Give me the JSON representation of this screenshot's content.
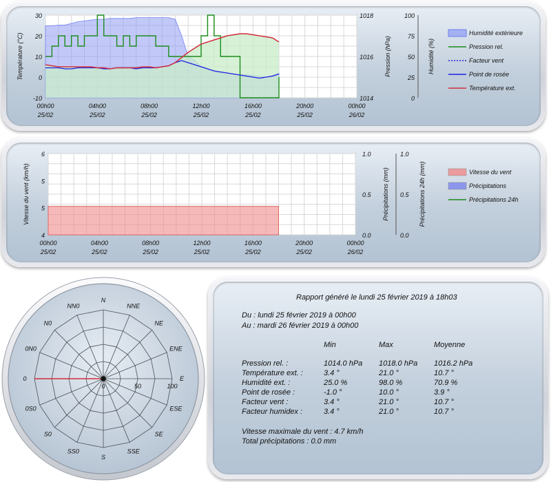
{
  "chart1": {
    "type": "line",
    "y1label": "Température (°C)",
    "y2label": "Pression (hPa)",
    "y3label": "Humidité (%)",
    "y1ticks": [
      "30",
      "20",
      "10",
      "0",
      "-10"
    ],
    "y2ticks": [
      "1018",
      "1016",
      "1014"
    ],
    "y3ticks": [
      "100",
      "75",
      "50",
      "25",
      "0"
    ],
    "xticks": [
      [
        "00h00",
        "25/02"
      ],
      [
        "04h00",
        "25/02"
      ],
      [
        "08h00",
        "25/02"
      ],
      [
        "12h00",
        "25/02"
      ],
      [
        "16h00",
        "25/02"
      ],
      [
        "20h00",
        "25/02"
      ],
      [
        "00h00",
        "26/02"
      ]
    ],
    "legend": [
      "Humidité extérieure",
      "Pression rel.",
      "Facteur vent",
      "Point de rosée",
      "Température ext."
    ],
    "colors": {
      "humidity": "#8f9cf4",
      "pressure": "#1a8a1a",
      "wind_factor": "#2222cc",
      "dew": "#1e1ee6",
      "temp": "#d22c3c"
    }
  },
  "chart2": {
    "type": "bar",
    "y1label": "Vitesse du vent (km/h)",
    "y2label": "Précipitations (mm)",
    "y3label": "Précipitations 24h (mm)",
    "y1ticks": [
      "6",
      "5",
      "5",
      "4"
    ],
    "y2ticks": [
      "1.0",
      "0.5",
      "0.0"
    ],
    "y3ticks": [
      "1.0",
      "0.5",
      "0.0"
    ],
    "xticks": [
      [
        "00h00",
        "25/02"
      ],
      [
        "04h00",
        "25/02"
      ],
      [
        "08h00",
        "25/02"
      ],
      [
        "12h00",
        "25/02"
      ],
      [
        "16h00",
        "25/02"
      ],
      [
        "20h00",
        "25/02"
      ],
      [
        "00h00",
        "26/02"
      ]
    ],
    "legend": [
      "Vitesse du vent",
      "Précipitations",
      "Précipitations 24h"
    ],
    "colors": {
      "wind": "#f08a8a",
      "rain": "#7a85ee",
      "rain24": "#1a8a1a"
    }
  },
  "chart_data": [
    {
      "type": "line",
      "xlabel": "",
      "x_hours": [
        0,
        0.5,
        1,
        1.5,
        2,
        2.5,
        3,
        3.5,
        4,
        4.5,
        5,
        5.5,
        6,
        6.5,
        7,
        7.5,
        8,
        8.5,
        9,
        9.5,
        10,
        10.5,
        11,
        11.5,
        12,
        12.5,
        13,
        13.5,
        14,
        14.5,
        15,
        15.5,
        16,
        16.5,
        17,
        17.5,
        18
      ],
      "series": [
        {
          "name": "Température ext.",
          "axis": "Température (°C)",
          "values": [
            6,
            5.5,
            5,
            5,
            5,
            5,
            5,
            5,
            4.5,
            4.5,
            4,
            4.5,
            4.5,
            4.5,
            4.5,
            5,
            5,
            4.5,
            5,
            5.5,
            7,
            9.5,
            12,
            14,
            16,
            17,
            18,
            19,
            20,
            20.5,
            21,
            21,
            20.5,
            20,
            19.5,
            19,
            17
          ]
        },
        {
          "name": "Point de rosée",
          "axis": "Température (°C)",
          "values": [
            4.5,
            4.5,
            4.5,
            4,
            4,
            4.5,
            4.5,
            4.5,
            4.5,
            4,
            4,
            4.5,
            4.5,
            4.5,
            4,
            4.5,
            4.5,
            4.5,
            5,
            5.5,
            7,
            8,
            7,
            6,
            5,
            4,
            3,
            2.5,
            2,
            1.5,
            1,
            0.5,
            0,
            -0.5,
            0,
            0.5,
            1.5
          ]
        },
        {
          "name": "Humidité extérieure",
          "axis": "Humidité (%)",
          "values": [
            87,
            87,
            88,
            88,
            90,
            92,
            93,
            94,
            95,
            95,
            96,
            96,
            96,
            96,
            97,
            97,
            97,
            97,
            97,
            97,
            95,
            75,
            50,
            45,
            38,
            35,
            32,
            30,
            30,
            29,
            28,
            28,
            27,
            26,
            25,
            27,
            30
          ]
        },
        {
          "name": "Pression rel.",
          "axis": "Pression (hPa)",
          "values": [
            1016,
            1016.5,
            1017,
            1016.5,
            1017,
            1016.5,
            1017,
            1017,
            1018,
            1017,
            1017,
            1016.5,
            1017,
            1016.5,
            1017,
            1017,
            1017,
            1016.5,
            1016.5,
            1016,
            1016,
            1016,
            1016,
            1016,
            1017,
            1018,
            1017,
            1016,
            1016,
            1016,
            1014,
            1014,
            1014,
            1014,
            1014,
            1014,
            1015
          ]
        }
      ]
    },
    {
      "type": "bar",
      "series": [
        {
          "name": "Vitesse du vent",
          "axis": "Vitesse du vent (km/h)",
          "x_hours": [
            0,
            18
          ],
          "values": [
            4.7,
            4.7
          ]
        },
        {
          "name": "Précipitations",
          "axis": "Précipitations (mm)",
          "values": [
            0
          ]
        },
        {
          "name": "Précipitations 24h",
          "axis": "Précipitations 24h (mm)",
          "values": [
            0
          ]
        }
      ]
    },
    {
      "type": "radar",
      "directions": [
        "N",
        "NNE",
        "NE",
        "ENE",
        "E",
        "ESE",
        "SE",
        "SSE",
        "S",
        "SS0",
        "S0",
        "0S0",
        "0",
        "0N0",
        "N0",
        "NN0"
      ],
      "ring_labels": [
        "0",
        "50",
        "100"
      ],
      "values": [
        0,
        0,
        0,
        0,
        0,
        0,
        0,
        0,
        0,
        0,
        0,
        0,
        100,
        0,
        0,
        0
      ]
    }
  ],
  "report": {
    "title": "Rapport généré le lundi 25 février 2019 à 18h03",
    "from": "Du : lundi 25 février 2019 à 00h00",
    "to": "Au : mardi 26 février 2019 à 00h00",
    "headers": [
      "Min",
      "Max",
      "Moyenne"
    ],
    "rows": [
      {
        "label": "Pression rel. :",
        "min": "1014.0 hPa",
        "max": "1018.0 hPa",
        "avg": "1016.2 hPa"
      },
      {
        "label": "Température ext. :",
        "min": "3.4 °",
        "max": "21.0 °",
        "avg": "10.7 °"
      },
      {
        "label": "Humidité ext. :",
        "min": "25.0 %",
        "max": "98.0 %",
        "avg": "70.9 %"
      },
      {
        "label": "Point de rosée :",
        "min": "-1.0 °",
        "max": "10.0 °",
        "avg": "3.9 °"
      },
      {
        "label": "Facteur vent :",
        "min": "3.4 °",
        "max": "21.0 °",
        "avg": "10.7 °"
      },
      {
        "label": "Facteur humidex :",
        "min": "3.4 °",
        "max": "21.0 °",
        "avg": "10.7 °"
      }
    ],
    "wind_max": "Vitesse maximale du vent : 4.7 km/h",
    "rain_total": "Total précipitations : 0.0 mm"
  }
}
